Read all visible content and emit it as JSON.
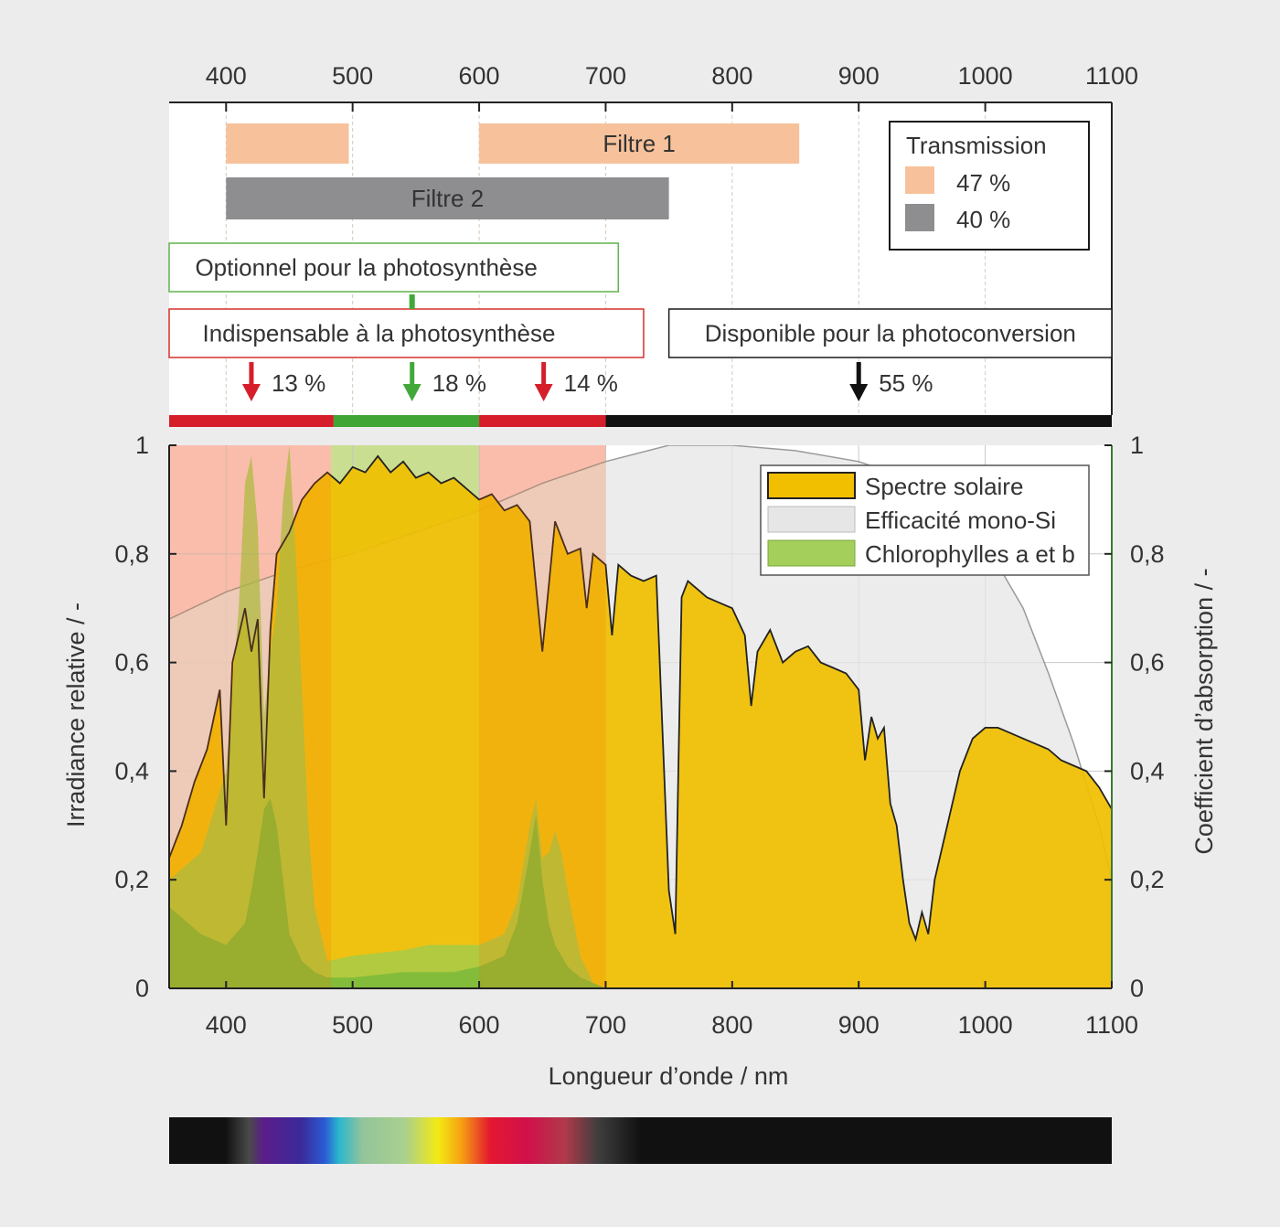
{
  "chart_data": {
    "type": "area",
    "xlabel": "Longueur d’onde / nm",
    "ylabel_left": "Irradiance relative / -",
    "ylabel_right": "Coefficient d’absorption / -",
    "xlim": [
      355,
      1100
    ],
    "ylim": [
      0,
      1
    ],
    "x_ticks": [
      400,
      500,
      600,
      700,
      800,
      900,
      1000,
      1100
    ],
    "x_tick_labels": [
      "400",
      "500",
      "600",
      "700",
      "800",
      "900",
      "1000",
      "1100"
    ],
    "y_ticks": [
      0,
      0.2,
      0.4,
      0.6,
      0.8,
      1
    ],
    "y_tick_labels": [
      "0",
      "0,2",
      "0,4",
      "0,6",
      "0,8",
      "1"
    ],
    "grid": true,
    "legend_position": "top-right",
    "legend": [
      {
        "label": "Spectre solaire",
        "color": "#f2be00"
      },
      {
        "label": "Efficacité mono-Si",
        "color": "#e6e6e6"
      },
      {
        "label": "Chlorophylles a et b",
        "color": "#a3cf5a"
      }
    ],
    "series": [
      {
        "name": "Spectre solaire",
        "x": [
          355,
          365,
          375,
          385,
          395,
          400,
          405,
          415,
          420,
          425,
          430,
          435,
          440,
          450,
          460,
          470,
          480,
          490,
          500,
          510,
          520,
          530,
          540,
          550,
          560,
          570,
          580,
          590,
          600,
          610,
          620,
          630,
          640,
          650,
          660,
          670,
          680,
          685,
          690,
          700,
          705,
          710,
          720,
          730,
          740,
          750,
          755,
          760,
          765,
          770,
          780,
          790,
          800,
          810,
          815,
          820,
          830,
          840,
          850,
          860,
          870,
          880,
          890,
          900,
          905,
          910,
          915,
          920,
          925,
          930,
          935,
          940,
          945,
          950,
          955,
          960,
          970,
          980,
          990,
          1000,
          1010,
          1020,
          1030,
          1040,
          1050,
          1060,
          1070,
          1080,
          1090,
          1100
        ],
        "y": [
          0.24,
          0.3,
          0.38,
          0.44,
          0.55,
          0.3,
          0.6,
          0.7,
          0.62,
          0.68,
          0.35,
          0.66,
          0.8,
          0.84,
          0.9,
          0.93,
          0.95,
          0.93,
          0.96,
          0.95,
          0.98,
          0.95,
          0.97,
          0.94,
          0.95,
          0.93,
          0.94,
          0.92,
          0.9,
          0.91,
          0.88,
          0.89,
          0.86,
          0.62,
          0.86,
          0.8,
          0.81,
          0.7,
          0.8,
          0.78,
          0.65,
          0.78,
          0.76,
          0.75,
          0.76,
          0.18,
          0.1,
          0.72,
          0.75,
          0.74,
          0.72,
          0.71,
          0.7,
          0.65,
          0.52,
          0.62,
          0.66,
          0.6,
          0.62,
          0.63,
          0.6,
          0.59,
          0.58,
          0.55,
          0.42,
          0.5,
          0.46,
          0.48,
          0.34,
          0.3,
          0.2,
          0.12,
          0.09,
          0.14,
          0.1,
          0.2,
          0.3,
          0.4,
          0.46,
          0.48,
          0.48,
          0.47,
          0.46,
          0.45,
          0.44,
          0.42,
          0.41,
          0.4,
          0.37,
          0.33
        ]
      },
      {
        "name": "Efficacité mono-Si",
        "x": [
          355,
          400,
          450,
          500,
          550,
          600,
          650,
          700,
          750,
          800,
          850,
          900,
          950,
          1000,
          1030,
          1050,
          1070,
          1090,
          1100
        ],
        "y": [
          0.68,
          0.73,
          0.77,
          0.8,
          0.84,
          0.88,
          0.93,
          0.97,
          1.0,
          1.0,
          0.99,
          0.97,
          0.93,
          0.82,
          0.7,
          0.58,
          0.45,
          0.3,
          0.2
        ]
      },
      {
        "name": "Chlorophylles a et b",
        "x": [
          355,
          380,
          400,
          410,
          415,
          420,
          425,
          430,
          435,
          440,
          445,
          450,
          455,
          460,
          465,
          470,
          480,
          500,
          540,
          560,
          580,
          600,
          620,
          630,
          640,
          645,
          650,
          655,
          660,
          665,
          670,
          680,
          690,
          700
        ],
        "y": [
          0.2,
          0.25,
          0.4,
          0.7,
          0.93,
          0.98,
          0.85,
          0.5,
          0.62,
          0.7,
          0.9,
          1.0,
          0.8,
          0.55,
          0.3,
          0.15,
          0.05,
          0.06,
          0.07,
          0.08,
          0.08,
          0.08,
          0.1,
          0.16,
          0.3,
          0.35,
          0.24,
          0.25,
          0.29,
          0.25,
          0.18,
          0.06,
          0.01,
          0.0
        ]
      },
      {
        "name": "Chlorophylle b",
        "x": [
          355,
          380,
          400,
          415,
          420,
          425,
          430,
          435,
          440,
          445,
          450,
          460,
          470,
          480,
          500,
          540,
          580,
          600,
          620,
          630,
          640,
          645,
          650,
          655,
          660,
          670,
          680,
          700
        ],
        "y": [
          0.15,
          0.1,
          0.08,
          0.12,
          0.18,
          0.25,
          0.33,
          0.35,
          0.3,
          0.2,
          0.1,
          0.05,
          0.03,
          0.02,
          0.02,
          0.03,
          0.03,
          0.04,
          0.06,
          0.12,
          0.25,
          0.32,
          0.2,
          0.12,
          0.08,
          0.04,
          0.02,
          0.0
        ]
      }
    ],
    "bands": [
      {
        "name": "Indispensable à la photosynthèse",
        "from": 355,
        "to": 483,
        "color": "#f5b0b4"
      },
      {
        "name": "Optionnel pour la photosynthèse",
        "from": 483,
        "to": 600,
        "color": "#a6c84a"
      },
      {
        "name": "Indispensable à la photosynthèse",
        "from": 600,
        "to": 700,
        "color": "#f5b0b4"
      }
    ],
    "filters": [
      {
        "label": "Filtre 1",
        "ranges": [
          [
            400,
            497
          ],
          [
            600,
            853
          ]
        ],
        "color": "#f7c29b"
      },
      {
        "label": "Filtre 2",
        "ranges": [
          [
            400,
            750
          ]
        ],
        "color": "#8e8e90"
      }
    ],
    "transmission_legend": {
      "title": "Transmission",
      "items": [
        {
          "label": "47 %",
          "color": "#f7c29b"
        },
        {
          "label": "40 %",
          "color": "#8e8e90"
        }
      ]
    },
    "regions": [
      {
        "label": "Optionnel pour la photosynthèse",
        "from": 355,
        "to": 710,
        "border": "#5fb44a"
      },
      {
        "label": "Indispensable à la photosynthèse",
        "from": 355,
        "to": 730,
        "border": "#d6302c"
      },
      {
        "label": "Disponible pour la photoconversion",
        "from": 750,
        "to": 1100,
        "border": "#1a1a1a"
      }
    ],
    "arrows": [
      {
        "label": "13 %",
        "x": 420,
        "color": "#d61e2b"
      },
      {
        "label": "18 %",
        "x": 547,
        "color": "#42a83a"
      },
      {
        "label": "14 %",
        "x": 651,
        "color": "#d61e2b"
      },
      {
        "label": "55 %",
        "x": 900,
        "color": "#111111"
      }
    ],
    "range_bar": [
      {
        "from": 355,
        "to": 485,
        "color": "#d61e2b"
      },
      {
        "from": 485,
        "to": 600,
        "color": "#3fa535"
      },
      {
        "from": 600,
        "to": 700,
        "color": "#d61e2b"
      },
      {
        "from": 700,
        "to": 1100,
        "color": "#111111"
      }
    ]
  }
}
